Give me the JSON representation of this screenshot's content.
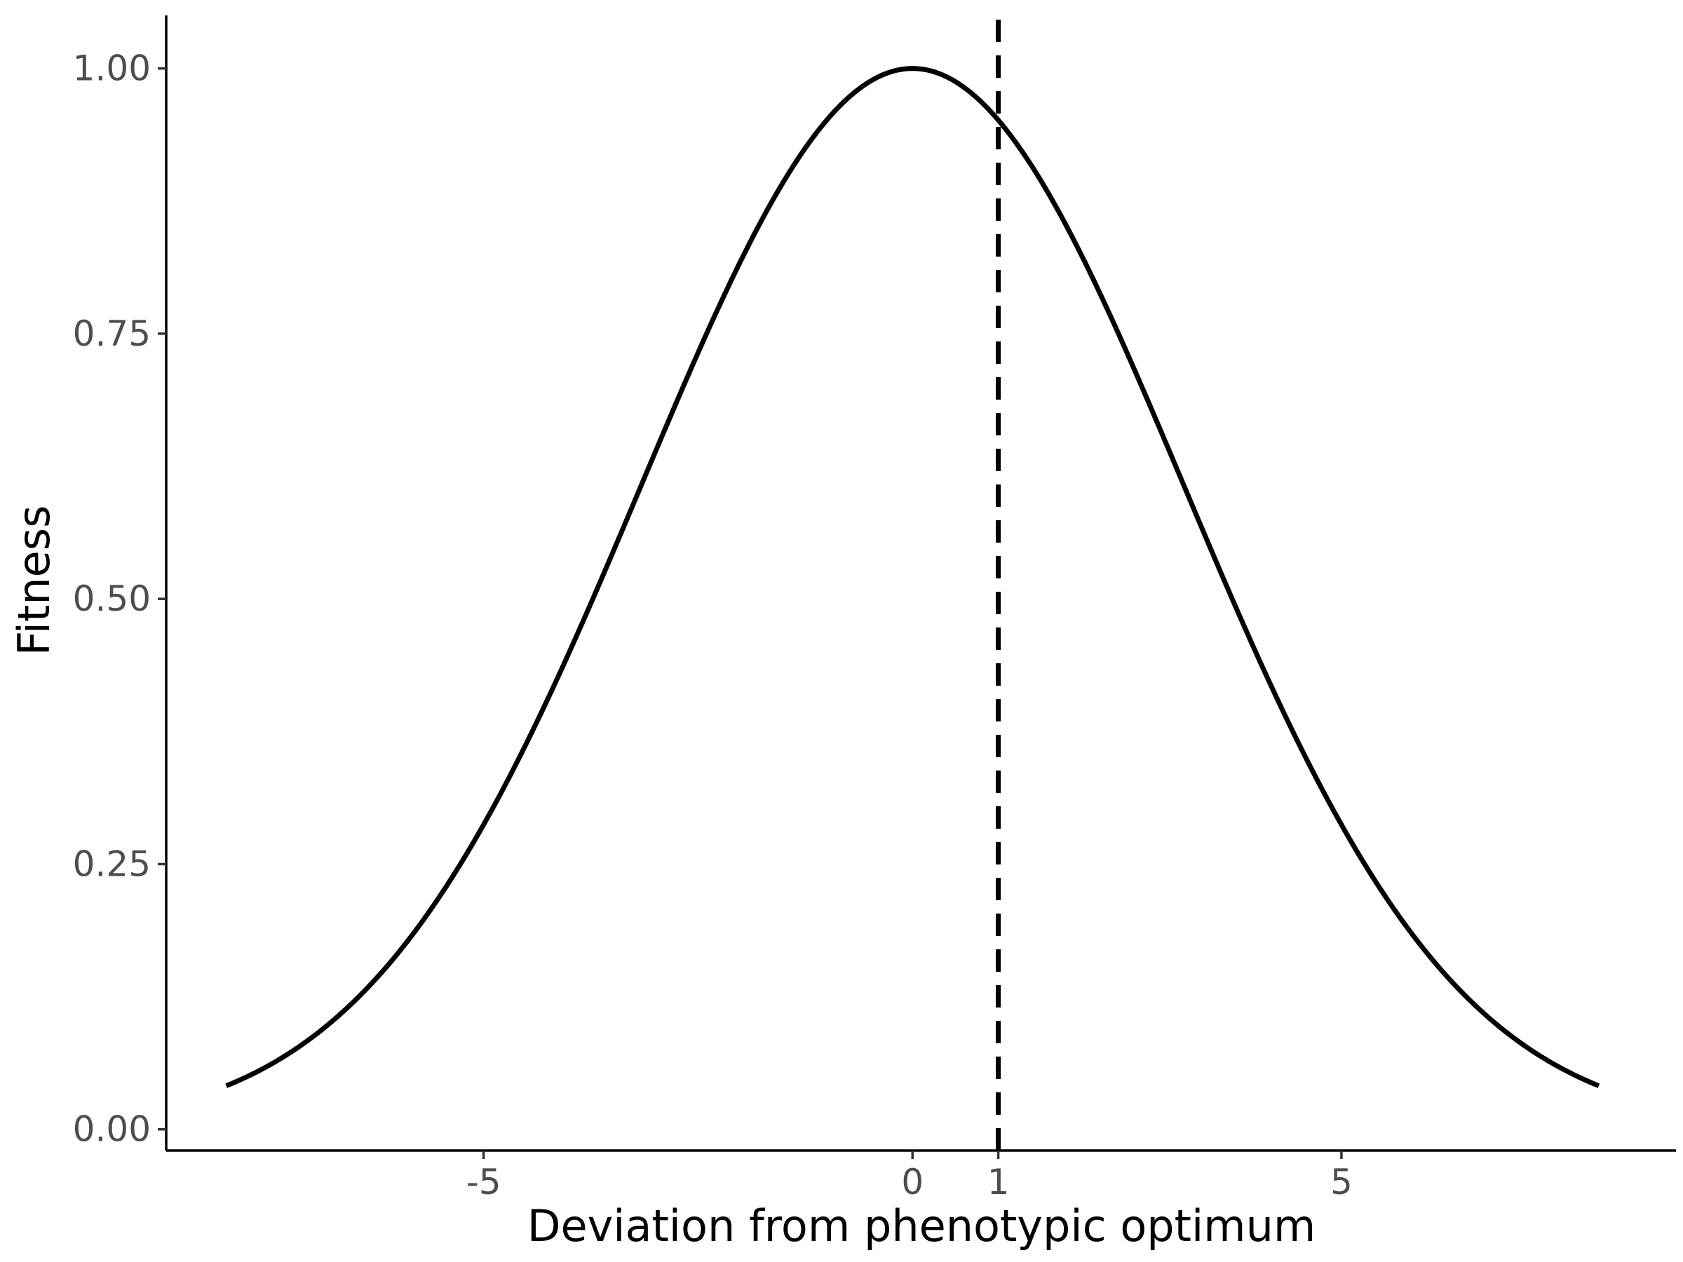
{
  "chart_data": {
    "type": "line",
    "title": "",
    "xlabel": "Deviation from phenotypic optimum",
    "ylabel": "Fitness",
    "xlim": [
      -8.7,
      8.9
    ],
    "ylim": [
      -0.02,
      1.05
    ],
    "x_ticks": [
      {
        "value": -5,
        "label": "-5"
      },
      {
        "value": 0,
        "label": "0"
      },
      {
        "value": 1,
        "label": "1"
      },
      {
        "value": 5,
        "label": "5"
      }
    ],
    "y_ticks": [
      {
        "value": 0.0,
        "label": "0.00"
      },
      {
        "value": 0.25,
        "label": "0.25"
      },
      {
        "value": 0.5,
        "label": "0.50"
      },
      {
        "value": 0.75,
        "label": "0.75"
      },
      {
        "value": 1.0,
        "label": "1.00"
      }
    ],
    "series": [
      {
        "x": [
          -8,
          -7.5,
          -7,
          -6.5,
          -6,
          -5.5,
          -5,
          -4.5,
          -4,
          -3.5,
          -3,
          -2.5,
          -2,
          -1.5,
          -1,
          -0.5,
          0,
          0.5,
          1,
          1.5,
          2,
          2.5,
          3,
          3.5,
          4,
          4.5,
          5,
          5.5,
          6,
          6.5,
          7,
          7.5,
          8
        ],
        "y": [
          0.041,
          0.06,
          0.085,
          0.118,
          0.159,
          0.211,
          0.271,
          0.339,
          0.414,
          0.493,
          0.573,
          0.653,
          0.729,
          0.798,
          0.857,
          0.908,
          1.0,
          0.908,
          0.952,
          0.798,
          0.729,
          0.653,
          0.573,
          0.493,
          0.414,
          0.339,
          0.271,
          0.211,
          0.159,
          0.118,
          0.085,
          0.06,
          0.041
        ],
        "color": "#000000",
        "style": "solid"
      }
    ],
    "vlines": [
      {
        "x": 1,
        "color": "#000000",
        "style": "dashed"
      }
    ],
    "grid": false,
    "legend": "none"
  }
}
